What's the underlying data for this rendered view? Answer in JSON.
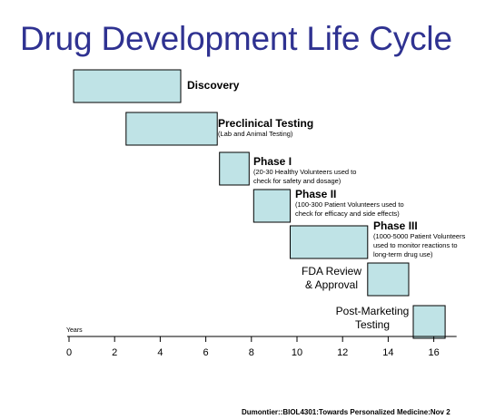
{
  "title": "Drug Development Life Cycle",
  "footer": "Dumontier::BIOL4301:Towards Personalized Medicine:Nov 2",
  "chart_data": {
    "type": "gantt",
    "xlabel": "Years",
    "xlim": [
      0,
      17
    ],
    "ticks": [
      0,
      2,
      4,
      6,
      8,
      10,
      12,
      14,
      16
    ],
    "bar_color": "#bfe3e6",
    "phases": [
      {
        "name": "Discovery",
        "detail": "",
        "start": 0.2,
        "end": 4.9
      },
      {
        "name": "Preclinical Testing",
        "detail": "(Lab and Animal Testing)",
        "start": 2.5,
        "end": 6.5
      },
      {
        "name": "Phase I",
        "detail": "(20-30 Healthy Volunteers used to\ncheck for safety and dosage)",
        "start": 6.6,
        "end": 7.9
      },
      {
        "name": "Phase II",
        "detail": "(100-300 Patient Volunteers used to\ncheck for efficacy and side effects)",
        "start": 8.1,
        "end": 9.7
      },
      {
        "name": "Phase III",
        "detail": "(1000-5000 Patient Volunteers\nused to monitor reactions to\nlong-term drug use)",
        "start": 9.7,
        "end": 13.1
      },
      {
        "name": "FDA Review\n& Approval",
        "detail": "",
        "start": 13.1,
        "end": 14.9
      },
      {
        "name": "Post-Marketing\nTesting",
        "detail": "",
        "start": 15.1,
        "end": 16.5
      }
    ]
  }
}
